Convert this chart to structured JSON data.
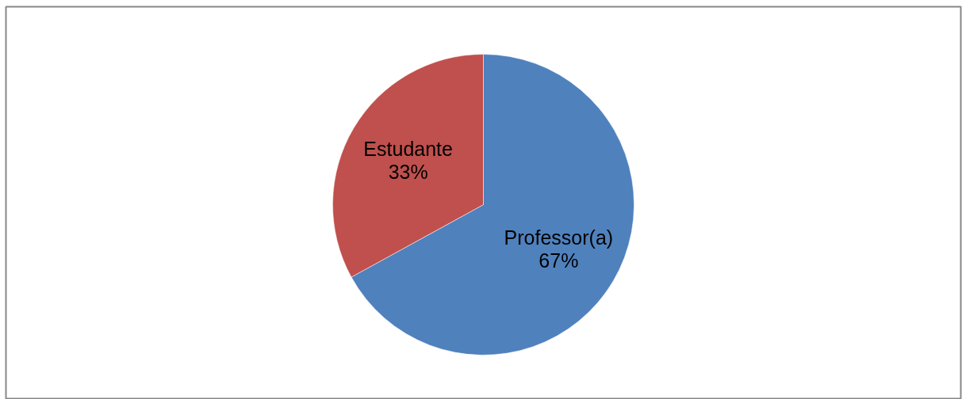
{
  "chart_data": {
    "type": "pie",
    "categories": [
      "Professor(a)",
      "Estudante"
    ],
    "values": [
      67,
      33
    ],
    "colors": [
      "#4f81bd",
      "#c0504d"
    ],
    "value_labels": [
      "67%",
      "33%"
    ]
  }
}
